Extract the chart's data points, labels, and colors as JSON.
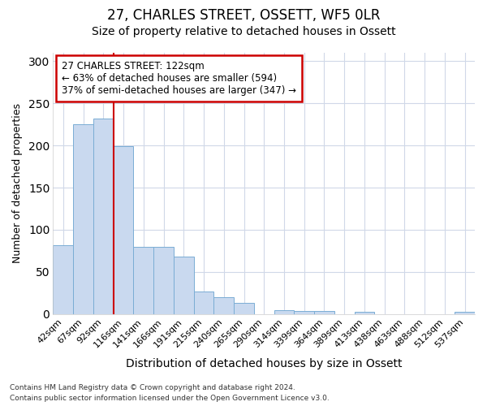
{
  "title": "27, CHARLES STREET, OSSETT, WF5 0LR",
  "subtitle": "Size of property relative to detached houses in Ossett",
  "xlabel": "Distribution of detached houses by size in Ossett",
  "ylabel": "Number of detached properties",
  "categories": [
    "42sqm",
    "67sqm",
    "92sqm",
    "116sqm",
    "141sqm",
    "166sqm",
    "191sqm",
    "215sqm",
    "240sqm",
    "265sqm",
    "290sqm",
    "314sqm",
    "339sqm",
    "364sqm",
    "389sqm",
    "413sqm",
    "438sqm",
    "463sqm",
    "488sqm",
    "512sqm",
    "537sqm"
  ],
  "values": [
    82,
    225,
    232,
    199,
    80,
    80,
    68,
    27,
    20,
    13,
    0,
    5,
    4,
    4,
    0,
    3,
    0,
    0,
    0,
    0,
    3
  ],
  "bar_color": "#c9d9ef",
  "bar_edge_color": "#7aadd4",
  "property_line_label": "27 CHARLES STREET: 122sqm",
  "annotation_line1": "← 63% of detached houses are smaller (594)",
  "annotation_line2": "37% of semi-detached houses are larger (347) →",
  "annotation_box_color": "#ffffff",
  "annotation_box_edge_color": "#cc0000",
  "vline_color": "#cc0000",
  "footer_line1": "Contains HM Land Registry data © Crown copyright and database right 2024.",
  "footer_line2": "Contains public sector information licensed under the Open Government Licence v3.0.",
  "ylim": [
    0,
    310
  ],
  "background_color": "#ffffff",
  "grid_color": "#d0d8e8",
  "title_fontsize": 12,
  "subtitle_fontsize": 10,
  "tick_fontsize": 8,
  "ylabel_fontsize": 9,
  "xlabel_fontsize": 10
}
